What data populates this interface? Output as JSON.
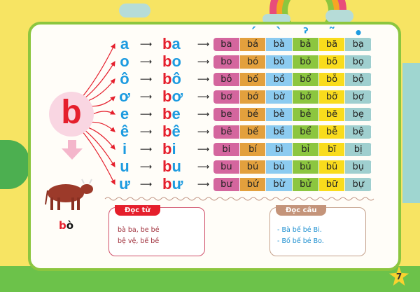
{
  "consonant": "b",
  "tone_marks": [
    "ˊ",
    "ˋ",
    "ˀ",
    "˜",
    "•"
  ],
  "rows": [
    {
      "vowel": "a",
      "syllable": "ba",
      "tones": [
        "ba",
        "bá",
        "bà",
        "bả",
        "bã",
        "bạ"
      ]
    },
    {
      "vowel": "o",
      "syllable": "bo",
      "tones": [
        "bo",
        "bó",
        "bò",
        "bỏ",
        "bõ",
        "bọ"
      ]
    },
    {
      "vowel": "ô",
      "syllable": "bô",
      "tones": [
        "bô",
        "bố",
        "bồ",
        "bổ",
        "bỗ",
        "bộ"
      ]
    },
    {
      "vowel": "ơ",
      "syllable": "bơ",
      "tones": [
        "bơ",
        "bớ",
        "bờ",
        "bở",
        "bỡ",
        "bợ"
      ]
    },
    {
      "vowel": "e",
      "syllable": "be",
      "tones": [
        "be",
        "bé",
        "bè",
        "bẻ",
        "bẽ",
        "bẹ"
      ]
    },
    {
      "vowel": "ê",
      "syllable": "bê",
      "tones": [
        "bê",
        "bế",
        "bề",
        "bể",
        "bễ",
        "bệ"
      ]
    },
    {
      "vowel": "i",
      "syllable": "bi",
      "tones": [
        "bi",
        "bí",
        "bì",
        "bỉ",
        "bĩ",
        "bị"
      ]
    },
    {
      "vowel": "u",
      "syllable": "bu",
      "tones": [
        "bu",
        "bú",
        "bù",
        "bủ",
        "bũ",
        "bụ"
      ]
    },
    {
      "vowel": "ư",
      "syllable": "bư",
      "tones": [
        "bư",
        "bứ",
        "bừ",
        "bử",
        "bữ",
        "bự"
      ]
    }
  ],
  "tone_colors": [
    "#d4669e",
    "#e3a03d",
    "#8ccbf0",
    "#8cc63f",
    "#f9dc1c",
    "#9fcfcf"
  ],
  "picture_word": "bò",
  "read_words": {
    "title": "Đọc từ",
    "lines": [
      "bà ba, be bé",
      "bệ vệ, bế bề"
    ]
  },
  "read_sentences": {
    "title": "Đọc câu",
    "lines": [
      "- Bà bế bé Bi.",
      "- Bố bế bé Bo."
    ]
  },
  "page_number": "7"
}
